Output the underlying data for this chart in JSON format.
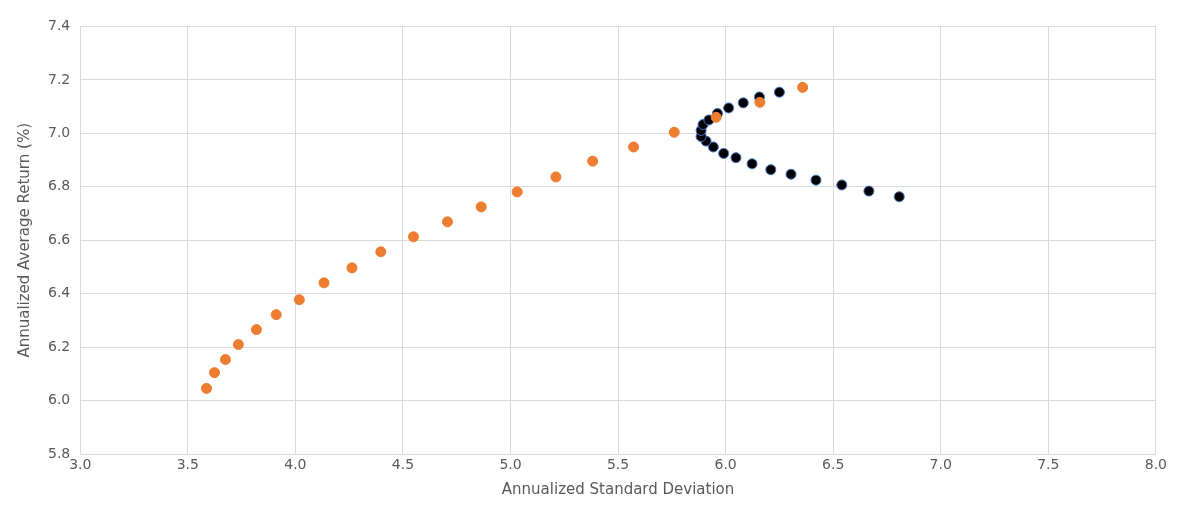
{
  "chart_data": {
    "type": "scatter",
    "xlabel": "Annualized Standard Deviation",
    "ylabel": "Annualized Average Return (%)",
    "xlim": [
      3.0,
      8.0
    ],
    "xticks": [
      {
        "value": 3,
        "label": "3.0"
      },
      3.5,
      {
        "value": 4,
        "label": "4.0"
      },
      4.5,
      {
        "value": 5,
        "label": "5.0"
      },
      5.5,
      {
        "value": 6,
        "label": "6.0"
      },
      6.5,
      {
        "value": 7,
        "label": "7.0"
      },
      7.5,
      {
        "value": 8,
        "label": "8.0"
      }
    ],
    "ylim": [
      5.8,
      7.4
    ],
    "yticks": [
      5.8,
      {
        "value": 6,
        "label": "6.0"
      },
      6.2,
      6.4,
      6.6,
      6.8,
      {
        "value": 7,
        "label": "7.0"
      },
      7.2,
      7.4
    ],
    "grid": true,
    "legend": false,
    "marker": "circle",
    "series": [
      {
        "color": "#ed7d31",
        "x": [
          3.587,
          3.624,
          3.675,
          3.735,
          3.819,
          3.911,
          4.018,
          4.133,
          4.263,
          4.397,
          4.549,
          4.707,
          4.864,
          5.031,
          5.211,
          5.382,
          5.572,
          5.761,
          5.956,
          6.159,
          6.358
        ],
        "values": [
          6.046,
          6.105,
          6.154,
          6.21,
          6.266,
          6.322,
          6.378,
          6.441,
          6.497,
          6.557,
          6.613,
          6.669,
          6.725,
          6.781,
          6.837,
          6.896,
          6.949,
          7.004,
          7.06,
          7.116,
          7.172
        ]
      },
      {
        "color": "#000000",
        "x": [
          6.807,
          6.666,
          6.54,
          6.42,
          6.304,
          6.21,
          6.123,
          6.048,
          5.991,
          5.943,
          5.909,
          5.886,
          5.886,
          5.895,
          5.922,
          5.962,
          6.014,
          6.082,
          6.157,
          6.25
        ],
        "values": [
          6.763,
          6.784,
          6.807,
          6.825,
          6.847,
          6.864,
          6.886,
          6.909,
          6.925,
          6.949,
          6.971,
          6.988,
          7.011,
          7.033,
          7.05,
          7.074,
          7.095,
          7.114,
          7.136,
          7.154
        ]
      }
    ]
  }
}
